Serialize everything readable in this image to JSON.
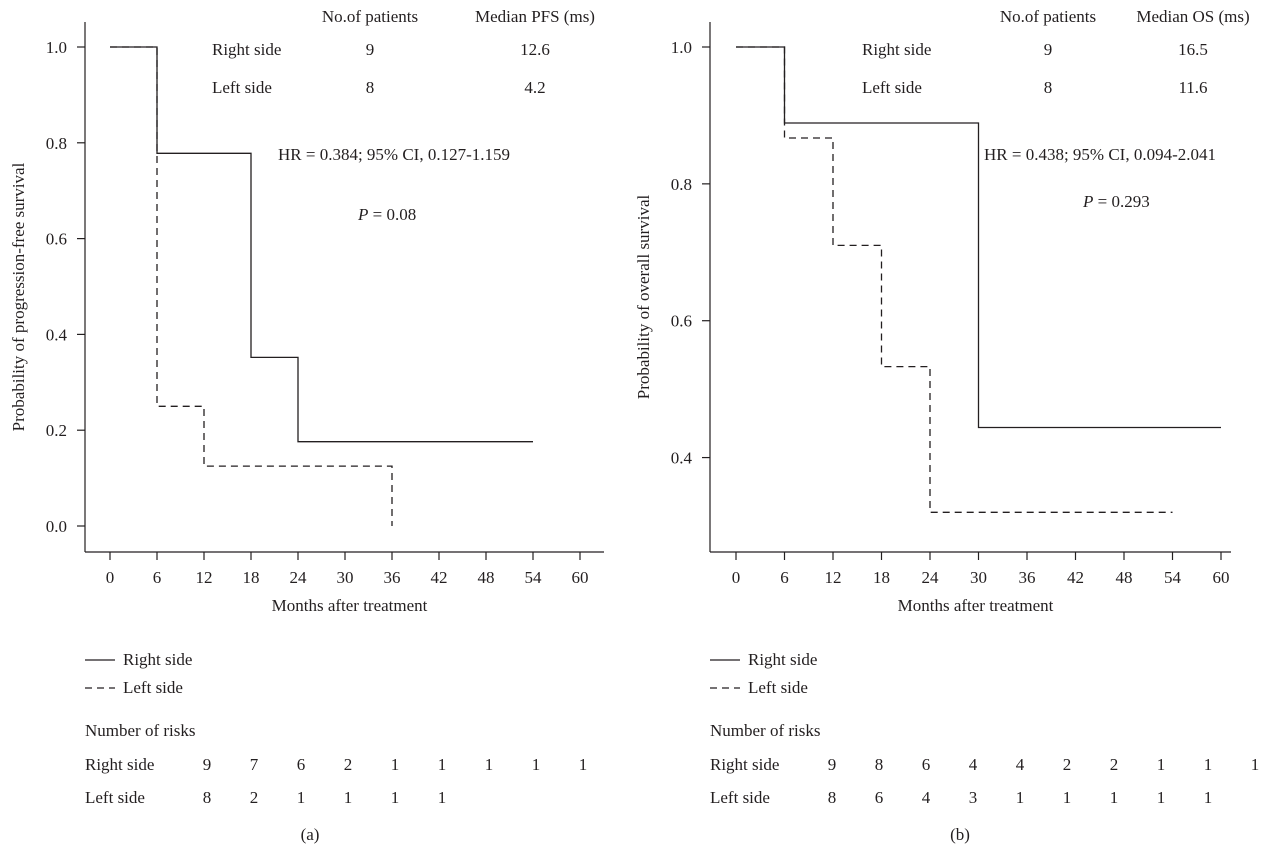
{
  "chart_data": [
    {
      "type": "line",
      "step": true,
      "panel_label": "(a)",
      "xlabel": "Months after treatment",
      "ylabel": "Probability of progression-free survival",
      "xlim": [
        0,
        60
      ],
      "ylim": [
        0.0,
        1.0
      ],
      "x_ticks": [
        "0",
        "6",
        "12",
        "18",
        "24",
        "30",
        "36",
        "42",
        "48",
        "54",
        "60"
      ],
      "y_ticks": [
        "0.0",
        "0.2",
        "0.4",
        "0.6",
        "0.8",
        "1.0"
      ],
      "series": [
        {
          "name": "Right side",
          "line_style": "solid",
          "points": [
            [
              0,
              1.0
            ],
            [
              6,
              1.0
            ],
            [
              6,
              0.778
            ],
            [
              18,
              0.778
            ],
            [
              18,
              0.352
            ],
            [
              24,
              0.352
            ],
            [
              24,
              0.176
            ],
            [
              54,
              0.176
            ]
          ]
        },
        {
          "name": "Left side",
          "line_style": "dashed",
          "points": [
            [
              0,
              1.0
            ],
            [
              6,
              1.0
            ],
            [
              6,
              0.25
            ],
            [
              12,
              0.25
            ],
            [
              12,
              0.125
            ],
            [
              36,
              0.125
            ],
            [
              36,
              0.0
            ]
          ]
        }
      ],
      "summary_table": {
        "headers": [
          "",
          "No.of patients",
          "Median PFS (ms)"
        ],
        "rows": [
          [
            "Right side",
            "9",
            "12.6"
          ],
          [
            "Left side",
            "8",
            "4.2"
          ]
        ]
      },
      "annotations": {
        "hr": "HR = 0.384; 95% CI, 0.127-1.159",
        "p_label": "P",
        "p_value": " = 0.08"
      },
      "legend": [
        "Right side",
        "Left side"
      ],
      "risk_table": {
        "title": "Number of risks",
        "rows": [
          {
            "label": "Right side",
            "values": [
              "9",
              "7",
              "6",
              "2",
              "1",
              "1",
              "1",
              "1",
              "1"
            ]
          },
          {
            "label": "Left side",
            "values": [
              "8",
              "2",
              "1",
              "1",
              "1",
              "1"
            ]
          }
        ]
      }
    },
    {
      "type": "line",
      "step": true,
      "panel_label": "(b)",
      "xlabel": "Months after treatment",
      "ylabel": "Probability of overall survival",
      "xlim": [
        0,
        60
      ],
      "ylim": [
        0.3,
        1.0
      ],
      "x_ticks": [
        "0",
        "6",
        "12",
        "18",
        "24",
        "30",
        "36",
        "42",
        "48",
        "54",
        "60"
      ],
      "y_ticks": [
        "0.4",
        "0.6",
        "0.8",
        "1.0"
      ],
      "series": [
        {
          "name": "Right side",
          "line_style": "solid",
          "points": [
            [
              0,
              1.0
            ],
            [
              6,
              1.0
            ],
            [
              6,
              0.889
            ],
            [
              30,
              0.889
            ],
            [
              30,
              0.444
            ],
            [
              60,
              0.444
            ]
          ]
        },
        {
          "name": "Left side",
          "line_style": "dashed",
          "points": [
            [
              0,
              1.0
            ],
            [
              6,
              1.0
            ],
            [
              6,
              0.867
            ],
            [
              12,
              0.867
            ],
            [
              12,
              0.71
            ],
            [
              18,
              0.71
            ],
            [
              18,
              0.533
            ],
            [
              24,
              0.533
            ],
            [
              24,
              0.32
            ],
            [
              54,
              0.32
            ]
          ]
        }
      ],
      "summary_table": {
        "headers": [
          "",
          "No.of patients",
          "Median OS (ms)"
        ],
        "rows": [
          [
            "Right side",
            "9",
            "16.5"
          ],
          [
            "Left side",
            "8",
            "11.6"
          ]
        ]
      },
      "annotations": {
        "hr": "HR = 0.438; 95% CI, 0.094-2.041",
        "p_label": "P",
        "p_value": " = 0.293"
      },
      "legend": [
        "Right side",
        "Left side"
      ],
      "risk_table": {
        "title": "Number of risks",
        "rows": [
          {
            "label": "Right side",
            "values": [
              "9",
              "8",
              "6",
              "4",
              "4",
              "2",
              "2",
              "1",
              "1",
              "1"
            ]
          },
          {
            "label": "Left side",
            "values": [
              "8",
              "6",
              "4",
              "3",
              "1",
              "1",
              "1",
              "1",
              "1"
            ]
          }
        ]
      }
    }
  ]
}
